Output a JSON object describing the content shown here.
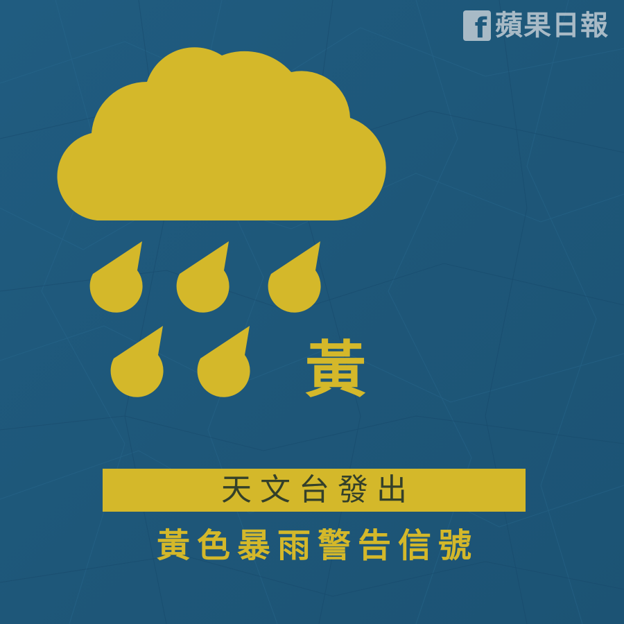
{
  "brand": {
    "name": "蘋果日報",
    "social_glyph": "f",
    "social_icon": "facebook-icon"
  },
  "signal": {
    "character": "黃",
    "icon": "rain-cloud-icon"
  },
  "headline": {
    "line1": "天文台發出",
    "line2": "黃色暴雨警告信號"
  },
  "colors": {
    "background": "#1f5a7d",
    "accent_yellow": "#d4b82a",
    "band_text": "#34402a",
    "logo": "#cfd6dc"
  }
}
